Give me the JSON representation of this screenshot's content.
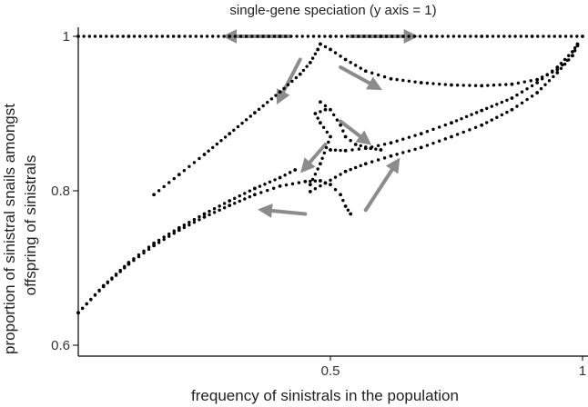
{
  "chart_data": {
    "type": "scatter",
    "xlabel": "frequency of sinistrals in the population",
    "ylabel_lines": [
      "proportion of sinistral snails amongst",
      "offspring of sinistrals"
    ],
    "annotation": "single-gene speciation (y axis = 1)",
    "xlim": [
      0,
      1
    ],
    "ylim": [
      0.6,
      1.0
    ],
    "x_ticks": [
      {
        "value": 0.5,
        "label": "0.5"
      },
      {
        "value": 1.0,
        "label": "1"
      }
    ],
    "y_ticks": [
      {
        "value": 1.0,
        "label": "1"
      },
      {
        "value": 0.8,
        "label": "0.8"
      },
      {
        "value": 0.6,
        "label": "0.6"
      }
    ],
    "grid": false,
    "legend": "none",
    "colors": {
      "points": "#000000",
      "arrows": "#8c8c8c",
      "axes": "#000000"
    },
    "series": [
      {
        "points": [
          [
            0.0,
            0.642
          ],
          [
            0.05,
            0.677
          ],
          [
            0.1,
            0.707
          ],
          [
            0.15,
            0.732
          ],
          [
            0.2,
            0.752
          ],
          [
            0.25,
            0.77
          ],
          [
            0.3,
            0.787
          ],
          [
            0.35,
            0.803
          ],
          [
            0.4,
            0.817
          ],
          [
            0.43,
            0.827
          ]
        ]
      },
      {
        "points": [
          [
            0.0,
            0.642
          ],
          [
            0.05,
            0.676
          ],
          [
            0.1,
            0.705
          ],
          [
            0.15,
            0.729
          ],
          [
            0.2,
            0.749
          ],
          [
            0.25,
            0.766
          ],
          [
            0.3,
            0.781
          ],
          [
            0.35,
            0.795
          ],
          [
            0.4,
            0.806
          ],
          [
            0.45,
            0.812
          ],
          [
            0.48,
            0.813
          ],
          [
            0.5,
            0.808
          ],
          [
            0.52,
            0.795
          ],
          [
            0.53,
            0.78
          ],
          [
            0.54,
            0.77
          ]
        ]
      },
      {
        "points": [
          [
            0.46,
            0.799
          ],
          [
            0.49,
            0.81
          ],
          [
            0.53,
            0.825
          ],
          [
            0.57,
            0.835
          ],
          [
            0.62,
            0.845
          ],
          [
            0.68,
            0.856
          ],
          [
            0.74,
            0.87
          ],
          [
            0.8,
            0.885
          ],
          [
            0.86,
            0.905
          ],
          [
            0.91,
            0.927
          ],
          [
            0.95,
            0.953
          ],
          [
            0.98,
            0.975
          ],
          [
            0.99,
            0.988
          ]
        ]
      },
      {
        "points": [
          [
            0.5,
            0.853
          ],
          [
            0.53,
            0.852
          ],
          [
            0.57,
            0.855
          ],
          [
            0.62,
            0.862
          ],
          [
            0.68,
            0.874
          ],
          [
            0.74,
            0.888
          ],
          [
            0.8,
            0.904
          ],
          [
            0.86,
            0.92
          ],
          [
            0.91,
            0.94
          ],
          [
            0.95,
            0.96
          ],
          [
            0.98,
            0.98
          ],
          [
            0.99,
            0.99
          ]
        ]
      },
      {
        "points": [
          [
            0.46,
            0.808
          ],
          [
            0.48,
            0.835
          ],
          [
            0.5,
            0.87
          ],
          [
            0.48,
            0.888
          ],
          [
            0.47,
            0.9
          ],
          [
            0.49,
            0.905
          ]
        ]
      },
      {
        "points": [
          [
            0.48,
            0.915
          ],
          [
            0.5,
            0.905
          ],
          [
            0.52,
            0.885
          ],
          [
            0.53,
            0.87
          ],
          [
            0.55,
            0.86
          ],
          [
            0.58,
            0.855
          ],
          [
            0.6,
            0.853
          ]
        ]
      },
      {
        "points": [
          [
            0.15,
            0.795
          ],
          [
            0.2,
            0.821
          ],
          [
            0.25,
            0.847
          ],
          [
            0.3,
            0.874
          ],
          [
            0.35,
            0.901
          ],
          [
            0.4,
            0.928
          ],
          [
            0.44,
            0.951
          ],
          [
            0.46,
            0.966
          ],
          [
            0.475,
            0.983
          ],
          [
            0.48,
            0.99
          ]
        ]
      },
      {
        "points": [
          [
            0.48,
            0.99
          ],
          [
            0.5,
            0.983
          ],
          [
            0.53,
            0.97
          ],
          [
            0.57,
            0.955
          ],
          [
            0.62,
            0.945
          ],
          [
            0.68,
            0.94
          ],
          [
            0.74,
            0.937
          ],
          [
            0.8,
            0.936
          ],
          [
            0.86,
            0.938
          ],
          [
            0.91,
            0.944
          ],
          [
            0.95,
            0.957
          ],
          [
            0.98,
            0.975
          ]
        ]
      },
      {
        "points": [
          [
            0.0,
            1.0
          ],
          [
            0.1,
            1.0
          ],
          [
            0.2,
            1.0
          ],
          [
            0.3,
            1.0
          ],
          [
            0.4,
            1.0
          ],
          [
            0.5,
            1.0
          ],
          [
            0.6,
            1.0
          ],
          [
            0.7,
            1.0
          ],
          [
            0.8,
            1.0
          ],
          [
            0.9,
            1.0
          ],
          [
            1.0,
            1.0
          ]
        ]
      }
    ],
    "arrows": [
      {
        "from": [
          0.42,
          1.0
        ],
        "to": [
          0.3,
          1.0
        ]
      },
      {
        "from": [
          0.54,
          1.0
        ],
        "to": [
          0.66,
          1.0
        ]
      },
      {
        "from": [
          0.44,
          0.97
        ],
        "to": [
          0.4,
          0.92
        ]
      },
      {
        "from": [
          0.52,
          0.96
        ],
        "to": [
          0.59,
          0.935
        ]
      },
      {
        "from": [
          0.49,
          0.86
        ],
        "to": [
          0.45,
          0.83
        ]
      },
      {
        "from": [
          0.52,
          0.89
        ],
        "to": [
          0.57,
          0.865
        ]
      },
      {
        "from": [
          0.45,
          0.77
        ],
        "to": [
          0.37,
          0.775
        ]
      },
      {
        "from": [
          0.57,
          0.775
        ],
        "to": [
          0.63,
          0.835
        ]
      }
    ]
  }
}
